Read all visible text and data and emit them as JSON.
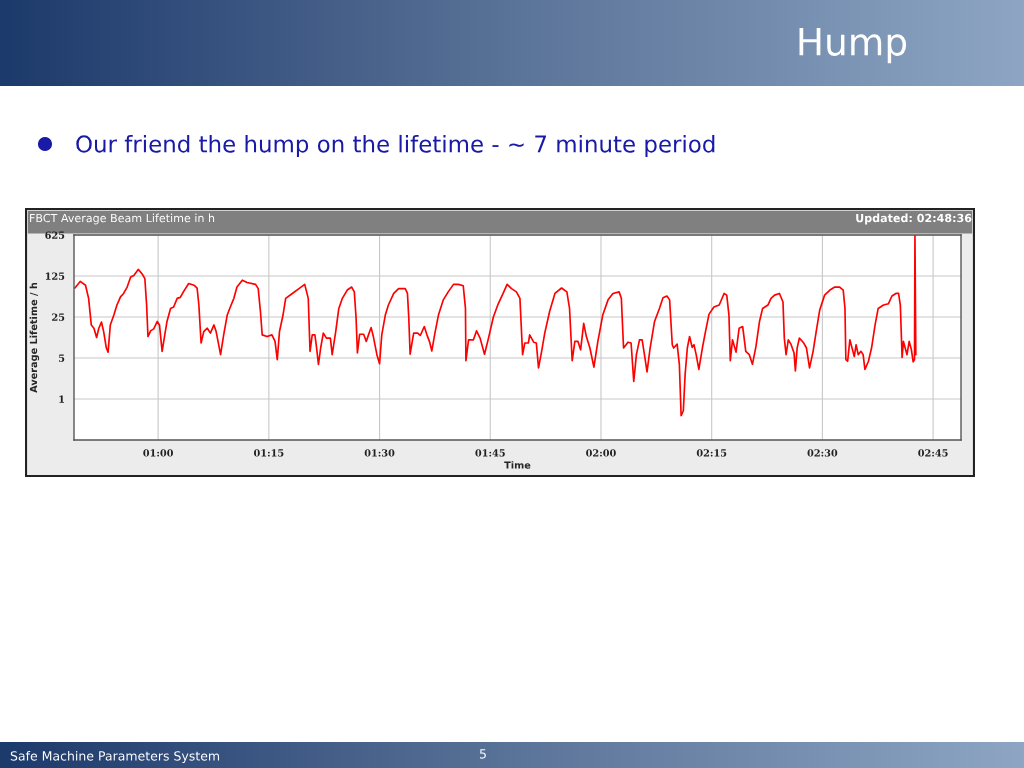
{
  "chart_data": {
    "type": "line",
    "title": "Hump",
    "subtitle": "Our friend the hump on the lifetime - ~ 7 minute period",
    "annotations": [
      "FBCT Average Beam Lifetime in h",
      "Updated: 02:48:36",
      "Safe Machine Parameters System",
      "5"
    ],
    "xlabel": "Time",
    "ylabel": "Average Lifetime / h",
    "log": "y",
    "grid": true,
    "marker": "none",
    "line_style": "solid",
    "xlim": [
      0.81,
      2.813
    ],
    "ylim": [
      0.2,
      625
    ],
    "xticks": [
      {
        "value": 1,
        "label": "01:00"
      },
      {
        "value": 1.25,
        "label": "01:15"
      },
      {
        "value": 1.5,
        "label": "01:30"
      },
      {
        "value": 1.75,
        "label": "01:45"
      },
      {
        "value": 2,
        "label": "02:00"
      },
      {
        "value": 2.25,
        "label": "02:15"
      },
      {
        "value": 2.5,
        "label": "02:30"
      },
      {
        "value": 2.75,
        "label": "02:45"
      }
    ],
    "yticks": [
      1,
      5,
      25,
      125,
      625
    ],
    "series": [
      {
        "color": "#ff0000",
        "x": [
          0.812,
          0.824,
          0.836,
          0.843,
          0.849,
          0.855,
          0.861,
          0.866,
          0.872,
          0.877,
          0.883,
          0.887,
          0.892,
          0.9,
          0.907,
          0.915,
          0.922,
          0.93,
          0.938,
          0.945,
          0.955,
          0.964,
          0.97,
          0.974,
          0.977,
          0.983,
          0.99,
          0.998,
          1.003,
          1.009,
          1.015,
          1.02,
          1.028,
          1.035,
          1.043,
          1.05,
          1.058,
          1.069,
          1.081,
          1.088,
          1.092,
          1.097,
          1.103,
          1.111,
          1.118,
          1.126,
          1.131,
          1.141,
          1.148,
          1.156,
          1.163,
          1.171,
          1.178,
          1.19,
          1.201,
          1.22,
          1.226,
          1.231,
          1.235,
          1.246,
          1.257,
          1.264,
          1.269,
          1.274,
          1.282,
          1.288,
          1.303,
          1.318,
          1.331,
          1.339,
          1.343,
          1.348,
          1.354,
          1.357,
          1.362,
          1.367,
          1.373,
          1.38,
          1.389,
          1.393,
          1.401,
          1.408,
          1.416,
          1.427,
          1.437,
          1.443,
          1.447,
          1.45,
          1.455,
          1.464,
          1.47,
          1.475,
          1.481,
          1.486,
          1.494,
          1.5,
          1.505,
          1.513,
          1.52,
          1.532,
          1.543,
          1.558,
          1.563,
          1.566,
          1.569,
          1.577,
          1.586,
          1.592,
          1.601,
          1.607,
          1.613,
          1.618,
          1.625,
          1.633,
          1.644,
          1.655,
          1.667,
          1.678,
          1.689,
          1.694,
          1.695,
          1.701,
          1.712,
          1.719,
          1.727,
          1.737,
          1.746,
          1.757,
          1.768,
          1.779,
          1.788,
          1.798,
          1.809,
          1.817,
          1.823,
          1.828,
          1.836,
          1.839,
          1.848,
          1.854,
          1.859,
          1.866,
          1.873,
          1.884,
          1.896,
          1.911,
          1.923,
          1.929,
          1.935,
          1.941,
          1.948,
          1.954,
          1.961,
          1.967,
          1.975,
          1.984,
          1.993,
          2.004,
          2.016,
          2.027,
          2.041,
          2.046,
          2.051,
          2.061,
          2.068,
          2.074,
          2.08,
          2.087,
          2.093,
          2.098,
          2.104,
          2.111,
          2.121,
          2.132,
          2.14,
          2.149,
          2.155,
          2.161,
          2.164,
          2.172,
          2.177,
          2.181,
          2.186,
          2.19,
          2.195,
          2.2,
          2.206,
          2.21,
          2.215,
          2.221,
          2.229,
          2.236,
          2.244,
          2.255,
          2.267,
          2.278,
          2.284,
          2.289,
          2.292,
          2.297,
          2.305,
          2.312,
          2.32,
          2.327,
          2.335,
          2.342,
          2.35,
          2.358,
          2.365,
          2.377,
          2.384,
          2.392,
          2.403,
          2.411,
          2.414,
          2.418,
          2.423,
          2.429,
          2.436,
          2.439,
          2.443,
          2.448,
          2.458,
          2.464,
          2.471,
          2.479,
          2.486,
          2.494,
          2.505,
          2.517,
          2.528,
          2.539,
          2.547,
          2.551,
          2.553,
          2.557,
          2.562,
          2.567,
          2.572,
          2.576,
          2.581,
          2.587,
          2.592,
          2.596,
          2.604,
          2.611,
          2.619,
          2.626,
          2.638,
          2.649,
          2.657,
          2.666,
          2.672,
          2.676,
          2.68,
          2.683,
          2.687,
          2.691,
          2.696,
          2.701,
          2.705,
          2.708,
          2.709,
          2.711
        ],
        "values": [
          78,
          101,
          87,
          52,
          18.3,
          16.1,
          11.2,
          16.1,
          20.5,
          14.1,
          7.4,
          6.3,
          18.3,
          27,
          40,
          55,
          63,
          81,
          120,
          128,
          162,
          135,
          113,
          40,
          11.6,
          14.5,
          15.7,
          21,
          18.3,
          6.5,
          12.4,
          21,
          35,
          37,
          52,
          54,
          69,
          93,
          87,
          78,
          40,
          9.0,
          14.1,
          16.1,
          13.3,
          18.3,
          14.1,
          5.7,
          12.4,
          27,
          37,
          52,
          81,
          106,
          97,
          90,
          76,
          31,
          12.4,
          11.6,
          12.4,
          9.6,
          4.7,
          14.1,
          27,
          52,
          63,
          76,
          90,
          52,
          6.5,
          12.4,
          12.4,
          8.4,
          3.9,
          7.4,
          13.3,
          10.9,
          10.9,
          5.7,
          14.1,
          35,
          52,
          72,
          81,
          67,
          24,
          6.1,
          12.7,
          12.7,
          9.6,
          12.4,
          16.5,
          11.6,
          5.7,
          4.0,
          12.4,
          27,
          40,
          63,
          76,
          76,
          63,
          24,
          5.8,
          13.3,
          13.3,
          12.1,
          17.2,
          12.4,
          9.4,
          6.6,
          13.3,
          27,
          49,
          67,
          90,
          90,
          85,
          35,
          4.5,
          10.2,
          10.2,
          14.5,
          10.9,
          5.8,
          10.9,
          25,
          42,
          63,
          90,
          76,
          67,
          52,
          5.7,
          9.0,
          9.0,
          12.4,
          9.3,
          9.0,
          3.4,
          6.5,
          13.3,
          31,
          63,
          78,
          67,
          35,
          4.5,
          9.6,
          9.6,
          6.9,
          19.5,
          11.6,
          7.4,
          3.5,
          9.6,
          27,
          49,
          63,
          67,
          52,
          7.4,
          9.3,
          9.0,
          2.0,
          5.7,
          10.2,
          10.2,
          5.8,
          2.9,
          7.4,
          21,
          35,
          53,
          57,
          49,
          8.4,
          7.4,
          8.6,
          3.9,
          0.52,
          0.63,
          2.6,
          7.4,
          11.6,
          7.6,
          8.4,
          5.7,
          3.2,
          7.4,
          14.1,
          28,
          37,
          40,
          63,
          59,
          27,
          4.5,
          10.2,
          6.3,
          16.1,
          17.2,
          6.5,
          5.7,
          3.9,
          7.9,
          21,
          35,
          40,
          52,
          59,
          63,
          45,
          10.9,
          5.7,
          10.2,
          8.6,
          6.1,
          3.0,
          7.4,
          10.9,
          9.0,
          7.4,
          3.4,
          6.5,
          14.1,
          33,
          59,
          72,
          81,
          81,
          72,
          35,
          4.7,
          4.4,
          10.2,
          7.4,
          5.3,
          8.4,
          5.7,
          6.5,
          5.7,
          3.2,
          4.4,
          7.4,
          18.3,
          35,
          40,
          42,
          57,
          63,
          63,
          40,
          5.1,
          9.6,
          7.4,
          5.7,
          9.6,
          6.9,
          4.3,
          4.7,
          625,
          5.7
        ]
      }
    ]
  }
}
